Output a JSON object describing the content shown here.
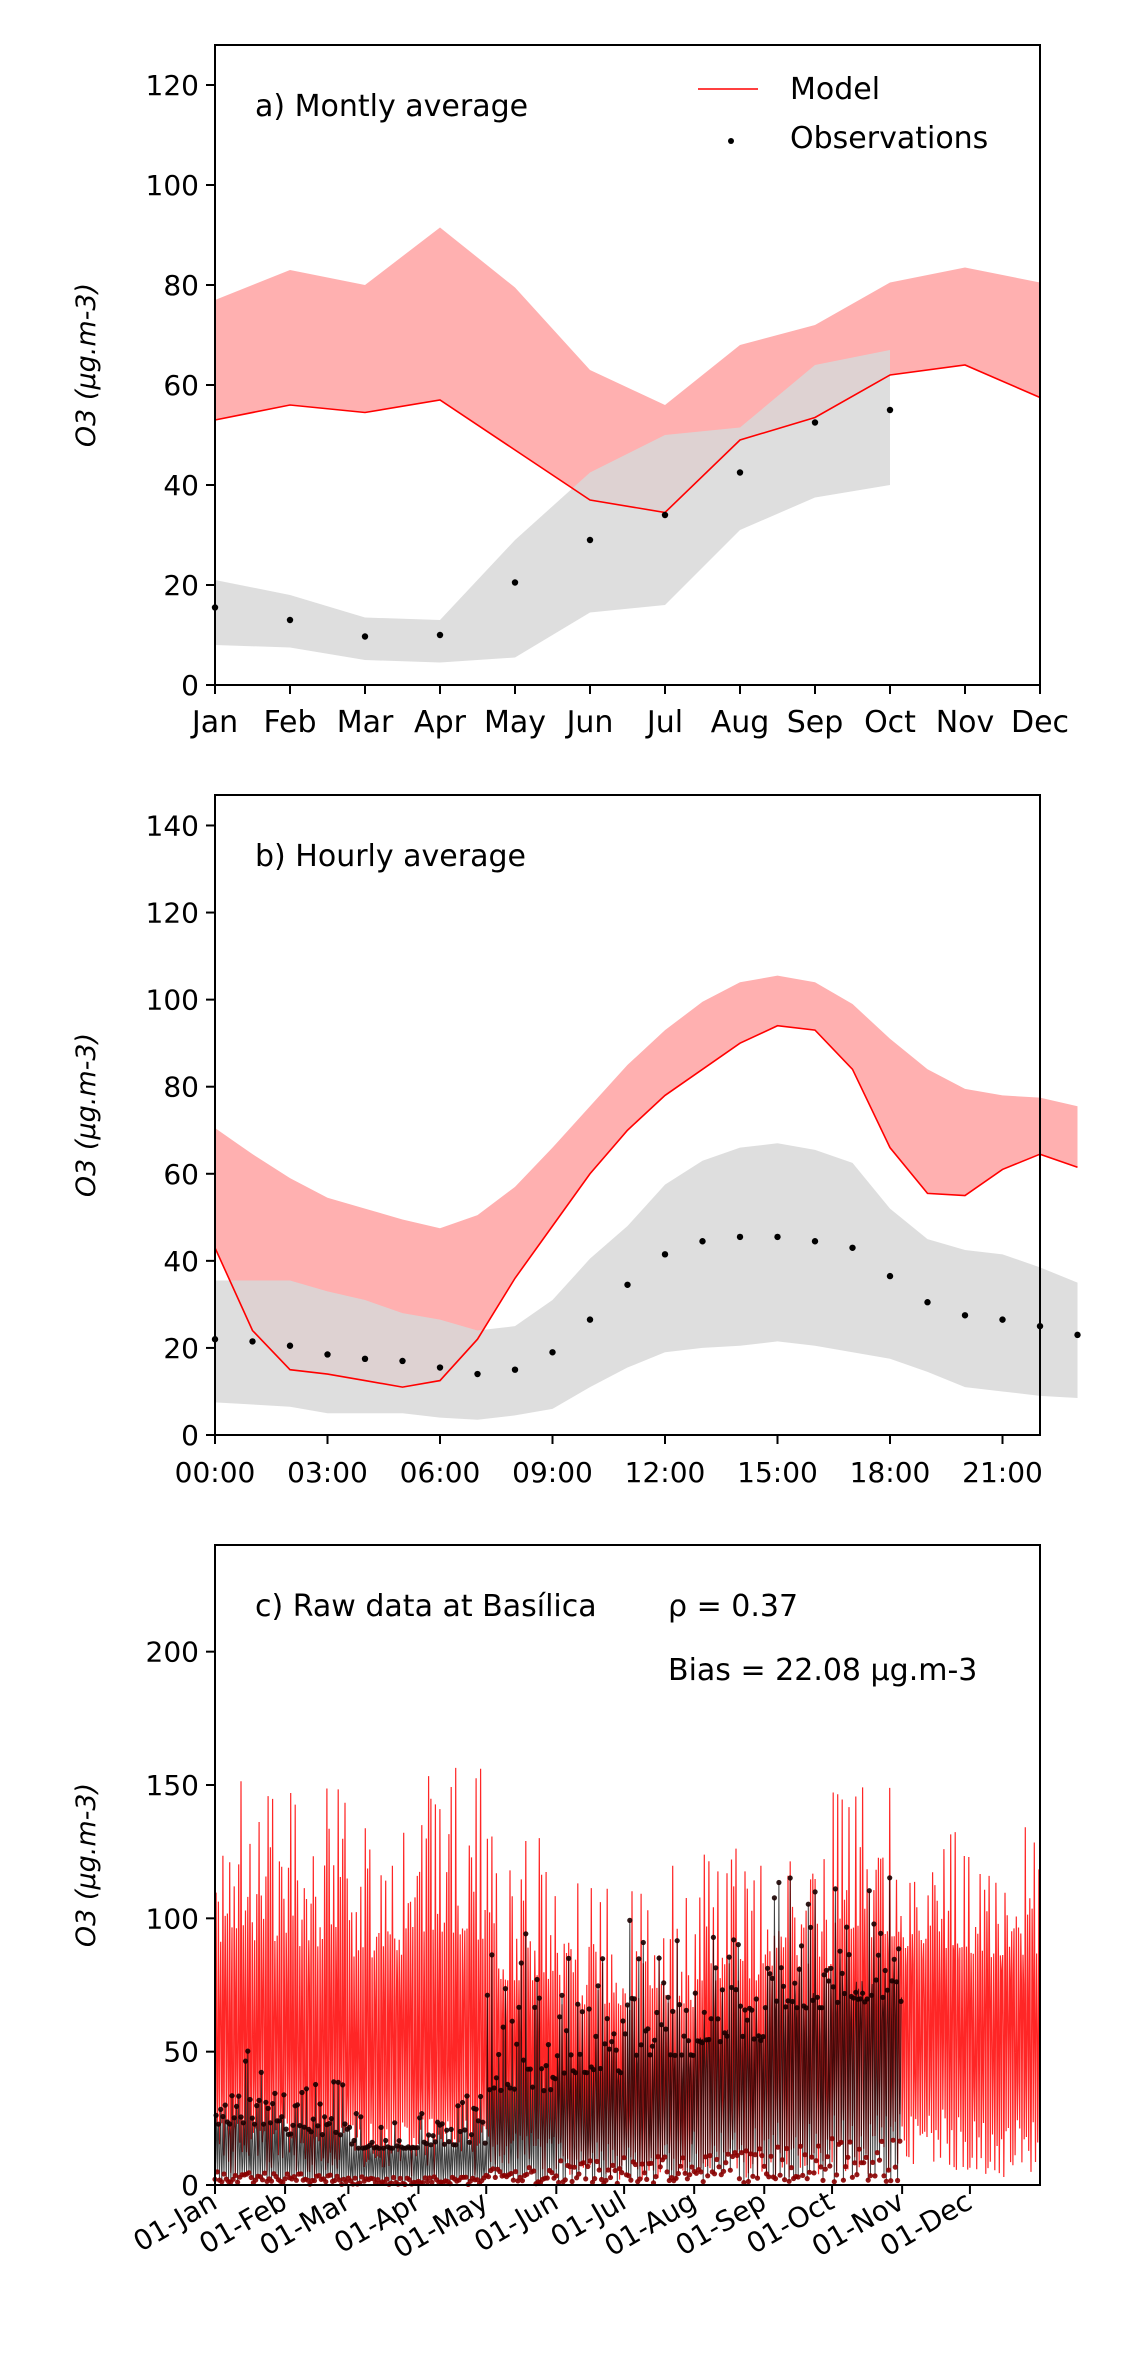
{
  "figure": {
    "background": "#ffffff",
    "model_color": "#ff0000",
    "model_band_color": "#ffb0b0",
    "obs_color": "#000000",
    "obs_band_color": "#d8d8d8"
  },
  "panels": {
    "a": {
      "label": "a) Montly average",
      "ylabel": "O3 (µg.m-3)",
      "legend": {
        "model": "Model",
        "observations": "Observations"
      },
      "x_ticks": [
        "Jan",
        "Feb",
        "Mar",
        "Apr",
        "May",
        "Jun",
        "Jul",
        "Aug",
        "Sep",
        "Oct",
        "Nov",
        "Dec"
      ],
      "y_ticks": [
        "0",
        "20",
        "40",
        "60",
        "80",
        "100",
        "120"
      ]
    },
    "b": {
      "label": "b) Hourly average",
      "ylabel": "O3 (µg.m-3)",
      "x_ticks": [
        "00:00",
        "03:00",
        "06:00",
        "09:00",
        "12:00",
        "15:00",
        "18:00",
        "21:00"
      ],
      "y_ticks": [
        "0",
        "20",
        "40",
        "60",
        "80",
        "100",
        "120",
        "140"
      ]
    },
    "c": {
      "label": "c) Raw data at Basílica",
      "rho": "ρ = 0.37",
      "bias": "Bias = 22.08 µg.m-3",
      "ylabel": "O3 (µg.m-3)",
      "x_ticks": [
        "01-Jan",
        "01-Feb",
        "01-Mar",
        "01-Apr",
        "01-May",
        "01-Jun",
        "01-Jul",
        "01-Aug",
        "01-Sep",
        "01-Oct",
        "01-Nov",
        "01-Dec"
      ],
      "y_ticks": [
        "0",
        "50",
        "100",
        "150",
        "200"
      ]
    }
  },
  "chart_data": [
    {
      "type": "line",
      "title": "a) Montly average",
      "ylabel": "O3 (µg.m-3)",
      "categories": [
        "Jan",
        "Feb",
        "Mar",
        "Apr",
        "May",
        "Jun",
        "Jul",
        "Aug",
        "Sep",
        "Oct",
        "Nov",
        "Dec"
      ],
      "ylim": [
        0,
        128
      ],
      "legend": "top-right",
      "series": [
        {
          "name": "Model",
          "values": [
            53,
            56,
            54.5,
            57,
            47,
            37,
            34.5,
            49,
            53.5,
            62,
            64,
            57.5
          ],
          "band_low": [
            53,
            56,
            54.5,
            57,
            47,
            37,
            34.5,
            49,
            53.5,
            62,
            64,
            57.5
          ],
          "band_high": [
            77,
            83,
            80,
            91.5,
            79.5,
            63,
            56,
            68,
            72,
            80.5,
            83.5,
            80.5
          ]
        },
        {
          "name": "Observations",
          "values": [
            15.5,
            13,
            9.7,
            10,
            20.5,
            29,
            34,
            42.5,
            52.5,
            55,
            null,
            null
          ],
          "band_low": [
            8,
            7.5,
            5,
            4.5,
            5.5,
            14.5,
            16,
            31,
            37.5,
            40,
            null,
            null
          ],
          "band_high": [
            21,
            18,
            13.5,
            13,
            29,
            42.5,
            50,
            51.5,
            64,
            67,
            null,
            null
          ]
        }
      ]
    },
    {
      "type": "line",
      "title": "b) Hourly average",
      "ylabel": "O3 (µg.m-3)",
      "x": [
        0,
        1,
        2,
        3,
        4,
        5,
        6,
        7,
        8,
        9,
        10,
        11,
        12,
        13,
        14,
        15,
        16,
        17,
        18,
        19,
        20,
        21,
        22,
        23
      ],
      "x_tick_labels": [
        "00:00",
        "03:00",
        "06:00",
        "09:00",
        "12:00",
        "15:00",
        "18:00",
        "21:00"
      ],
      "ylim": [
        0,
        147
      ],
      "series": [
        {
          "name": "Model",
          "values": [
            43,
            24,
            15,
            14,
            12.5,
            11,
            12.5,
            22,
            36,
            48,
            60,
            70,
            78,
            84,
            90,
            94,
            93,
            84,
            66,
            55.5,
            55,
            61,
            64.5,
            61.5
          ],
          "band_high": [
            70.5,
            64.5,
            59,
            54.5,
            52,
            49.5,
            47.5,
            50.5,
            57,
            66,
            75.5,
            85,
            93,
            99.5,
            104,
            105.5,
            104,
            99,
            91,
            84,
            79.5,
            78,
            77.5,
            75.5
          ]
        },
        {
          "name": "Observations",
          "values": [
            22,
            21.5,
            20.5,
            18.5,
            17.5,
            17,
            15.5,
            14,
            15,
            19,
            26.5,
            34.5,
            41.5,
            44.5,
            45.5,
            45.5,
            44.5,
            43,
            36.5,
            30.5,
            27.5,
            26.5,
            25,
            23
          ],
          "band_low": [
            7.5,
            7,
            6.5,
            5,
            5,
            5,
            4,
            3.5,
            4.5,
            6,
            11,
            15.5,
            19,
            20,
            20.5,
            21.5,
            20.5,
            19,
            17.5,
            14.5,
            11,
            10,
            9,
            8.5
          ],
          "band_high": [
            35.5,
            35.5,
            35.5,
            33,
            31,
            28,
            26.5,
            24,
            25,
            31,
            40.5,
            48,
            57.5,
            63,
            66,
            67,
            65.5,
            62.5,
            52,
            45,
            42.5,
            41.5,
            38.5,
            35
          ]
        }
      ]
    },
    {
      "type": "line",
      "title": "c) Raw data at Basílica",
      "ylabel": "O3 (µg.m-3)",
      "x_tick_labels": [
        "01-Jan",
        "01-Feb",
        "01-Mar",
        "01-Apr",
        "01-May",
        "01-Jun",
        "01-Jul",
        "01-Aug",
        "01-Sep",
        "01-Oct",
        "01-Nov",
        "01-Dec"
      ],
      "ylim": [
        0,
        240
      ],
      "annotations": [
        "ρ = 0.37",
        "Bias = 22.08 µg.m-3"
      ],
      "series": [
        {
          "name": "Model",
          "monthly_mean": [
            53,
            56,
            54.5,
            57,
            47,
            37,
            34.5,
            49,
            53.5,
            62,
            64,
            57.5
          ],
          "peak_values": [
            162,
            150,
            140,
            157,
            132,
            124,
            122,
            128,
            135,
            150,
            135,
            137
          ]
        },
        {
          "name": "Observations",
          "monthly_mean": [
            15.5,
            13,
            9.7,
            10,
            20.5,
            29,
            34,
            42.5,
            52.5,
            55,
            null,
            null
          ],
          "peak_values": [
            52,
            42,
            30,
            35,
            95,
            94,
            107,
            97,
            122,
            122,
            null,
            null
          ]
        }
      ]
    }
  ]
}
